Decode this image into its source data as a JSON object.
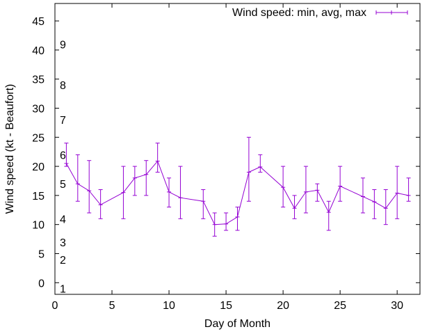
{
  "chart_data": {
    "type": "line",
    "title": "",
    "xlabel": "Day of Month",
    "ylabel": "Wind speed (kt - Beaufort)",
    "xlim": [
      0,
      32
    ],
    "ylim": [
      -2,
      48
    ],
    "x_ticks": [
      0,
      5,
      10,
      15,
      20,
      25,
      30
    ],
    "y_ticks": [
      0,
      5,
      10,
      15,
      20,
      25,
      30,
      35,
      40,
      45
    ],
    "grid": false,
    "legend": {
      "label": "Wind speed: min, avg, max",
      "position": "top-right"
    },
    "colors": {
      "series": "#9400d3",
      "axis": "#000000",
      "background": "#ffffff"
    },
    "beaufort_labels": [
      {
        "label": "1",
        "kt": -1
      },
      {
        "label": "2",
        "kt": 4
      },
      {
        "label": "3",
        "kt": 7
      },
      {
        "label": "4",
        "kt": 11
      },
      {
        "label": "5",
        "kt": 17
      },
      {
        "label": "6",
        "kt": 22
      },
      {
        "label": "7",
        "kt": 28
      },
      {
        "label": "8",
        "kt": 34
      },
      {
        "label": "9",
        "kt": 41
      }
    ],
    "series": [
      {
        "name": "Wind speed: min, avg, max",
        "points": [
          {
            "x": 1,
            "min": 20,
            "avg": 20.5,
            "max": 24
          },
          {
            "x": 2,
            "min": 14,
            "avg": 17,
            "max": 22
          },
          {
            "x": 3,
            "min": 12,
            "avg": 15.8,
            "max": 21
          },
          {
            "x": 4,
            "min": 11,
            "avg": 13.4,
            "max": 16
          },
          {
            "x": 6,
            "min": 11,
            "avg": 15.5,
            "max": 20
          },
          {
            "x": 7,
            "min": 15,
            "avg": 18,
            "max": 20
          },
          {
            "x": 8,
            "min": 15,
            "avg": 18.6,
            "max": 21
          },
          {
            "x": 9,
            "min": 19,
            "avg": 20.9,
            "max": 24
          },
          {
            "x": 10,
            "min": 13,
            "avg": 15.6,
            "max": 18
          },
          {
            "x": 11,
            "min": 11,
            "avg": 14.6,
            "max": 20
          },
          {
            "x": 13,
            "min": 11,
            "avg": 14,
            "max": 16
          },
          {
            "x": 14,
            "min": 8,
            "avg": 10,
            "max": 12
          },
          {
            "x": 15,
            "min": 9,
            "avg": 10.1,
            "max": 12
          },
          {
            "x": 16,
            "min": 9,
            "avg": 11.3,
            "max": 13
          },
          {
            "x": 17,
            "min": 14,
            "avg": 19,
            "max": 25
          },
          {
            "x": 18,
            "min": 19,
            "avg": 19.9,
            "max": 22
          },
          {
            "x": 20,
            "min": 13,
            "avg": 16.4,
            "max": 20
          },
          {
            "x": 21,
            "min": 11,
            "avg": 12.8,
            "max": 15
          },
          {
            "x": 22,
            "min": 12,
            "avg": 15.6,
            "max": 20
          },
          {
            "x": 23,
            "min": 14,
            "avg": 15.9,
            "max": 17
          },
          {
            "x": 24,
            "min": 9,
            "avg": 12.1,
            "max": 14
          },
          {
            "x": 25,
            "min": 14,
            "avg": 16.6,
            "max": 20
          },
          {
            "x": 27,
            "min": 12,
            "avg": 14.8,
            "max": 18
          },
          {
            "x": 28,
            "min": 11,
            "avg": 13.9,
            "max": 16
          },
          {
            "x": 29,
            "min": 10,
            "avg": 12.8,
            "max": 16
          },
          {
            "x": 30,
            "min": 11,
            "avg": 15.4,
            "max": 20
          },
          {
            "x": 31,
            "min": 14,
            "avg": 15,
            "max": 18
          }
        ]
      }
    ]
  }
}
